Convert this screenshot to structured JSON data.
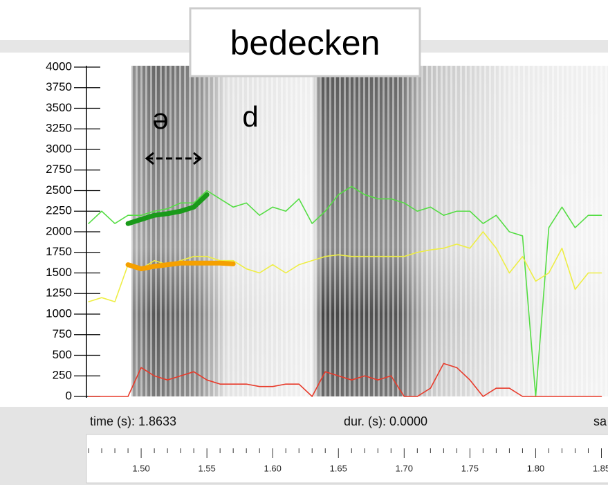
{
  "chart_data": {
    "type": "line",
    "title": "bedecken",
    "annotations": [
      "ə",
      "d"
    ],
    "ylim": [
      0,
      4000
    ],
    "yticks": [
      0,
      250,
      500,
      750,
      1000,
      1250,
      1500,
      1750,
      2000,
      2250,
      2500,
      2750,
      3000,
      3250,
      3500,
      3750,
      4000
    ],
    "xlim": [
      1.4584,
      1.855
    ],
    "xticks": [
      {
        "value": 1.5,
        "label": "1.50"
      },
      {
        "value": 1.55,
        "label": "1.55"
      },
      {
        "value": 1.6,
        "label": "1.60"
      },
      {
        "value": 1.65,
        "label": "1.65"
      },
      {
        "value": 1.7,
        "label": "1.70"
      },
      {
        "value": 1.75,
        "label": "1.75"
      },
      {
        "value": 1.8,
        "label": "1.80"
      },
      {
        "value": 1.85,
        "label": "1.85"
      }
    ],
    "xminorticks": [
      1.46,
      1.47,
      1.48,
      1.49,
      1.51,
      1.52,
      1.53,
      1.54,
      1.56,
      1.57,
      1.58,
      1.59,
      1.61,
      1.62,
      1.63,
      1.64,
      1.66,
      1.67,
      1.68,
      1.69,
      1.71,
      1.72,
      1.73,
      1.74,
      1.76,
      1.77,
      1.78,
      1.79,
      1.81,
      1.82,
      1.83,
      1.84
    ],
    "x": [
      1.46,
      1.47,
      1.48,
      1.49,
      1.5,
      1.51,
      1.52,
      1.53,
      1.54,
      1.55,
      1.56,
      1.57,
      1.58,
      1.59,
      1.6,
      1.61,
      1.62,
      1.63,
      1.64,
      1.65,
      1.66,
      1.67,
      1.68,
      1.69,
      1.7,
      1.71,
      1.72,
      1.73,
      1.74,
      1.75,
      1.76,
      1.77,
      1.78,
      1.79,
      1.8,
      1.81,
      1.82,
      1.83,
      1.84,
      1.85
    ],
    "series": [
      {
        "color": "#55dd44",
        "values": [
          2100,
          2250,
          2100,
          2200,
          2200,
          2250,
          2280,
          2350,
          2350,
          2500,
          2400,
          2300,
          2350,
          2200,
          2300,
          2250,
          2400,
          2100,
          2250,
          2450,
          2550,
          2450,
          2400,
          2400,
          2350,
          2250,
          2300,
          2200,
          2250,
          2250,
          2100,
          2200,
          2000,
          1950,
          0,
          2050,
          2300,
          2050,
          2200,
          2200
        ]
      },
      {
        "color": "#eeee44",
        "values": [
          1150,
          1200,
          1150,
          1600,
          1550,
          1650,
          1600,
          1650,
          1700,
          1700,
          1650,
          1650,
          1550,
          1500,
          1600,
          1500,
          1600,
          1650,
          1700,
          1720,
          1700,
          1700,
          1700,
          1700,
          1700,
          1750,
          1780,
          1800,
          1850,
          1800,
          2000,
          1800,
          1500,
          1700,
          1400,
          1500,
          1800,
          1300,
          1500,
          1500
        ]
      },
      {
        "color": "#e83a2a",
        "values": [
          0,
          0,
          0,
          0,
          350,
          250,
          200,
          250,
          300,
          200,
          150,
          150,
          150,
          120,
          120,
          150,
          150,
          0,
          300,
          250,
          200,
          250,
          200,
          250,
          0,
          0,
          100,
          400,
          350,
          200,
          0,
          100,
          100,
          0,
          0,
          0,
          0,
          0,
          0,
          0
        ]
      },
      {
        "color": "#1a9a1a",
        "width": 7,
        "x": [
          1.49,
          1.5,
          1.51,
          1.52,
          1.53,
          1.54,
          1.55
        ],
        "values": [
          2100,
          2150,
          2200,
          2220,
          2250,
          2300,
          2450
        ]
      },
      {
        "color": "#f5a000",
        "width": 7,
        "x": [
          1.49,
          1.5,
          1.51,
          1.52,
          1.53,
          1.54,
          1.55,
          1.56,
          1.57
        ],
        "values": [
          1600,
          1550,
          1580,
          1600,
          1620,
          1620,
          1620,
          1620,
          1610
        ]
      }
    ]
  },
  "status": {
    "time": "time (s):  1.8633",
    "dur": "dur. (s):  0.0000",
    "sa": "sa"
  }
}
